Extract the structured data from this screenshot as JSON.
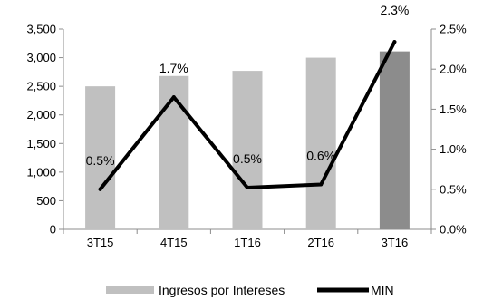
{
  "chart_data": {
    "type": "bar",
    "categories": [
      "3T15",
      "4T15",
      "1T16",
      "2T16",
      "3T16"
    ],
    "series": [
      {
        "name": "Ingresos por Intereses",
        "type": "bar",
        "axis": "left",
        "values": [
          2500,
          2680,
          2770,
          3000,
          3110
        ],
        "colors": [
          "#c0c0c0",
          "#c0c0c0",
          "#c0c0c0",
          "#c0c0c0",
          "#8c8c8c"
        ]
      },
      {
        "name": "MIN",
        "type": "line",
        "axis": "right",
        "values": [
          0.5,
          1.65,
          0.52,
          0.56,
          2.34
        ],
        "labels": [
          "0.5%",
          "1.7%",
          "0.5%",
          "0.6%",
          "2.3%"
        ],
        "color": "#000000"
      }
    ],
    "y_left": {
      "ylim": [
        0,
        3500
      ],
      "ticks": [
        0,
        500,
        1000,
        1500,
        2000,
        2500,
        3000,
        3500
      ],
      "tick_labels": [
        "0",
        "500",
        "1,000",
        "1,500",
        "2,000",
        "2,500",
        "3,000",
        "3,500"
      ]
    },
    "y_right": {
      "ylim": [
        0,
        2.5
      ],
      "ticks": [
        0,
        0.5,
        1.0,
        1.5,
        2.0,
        2.5
      ],
      "tick_labels": [
        "0.0%",
        "0.5%",
        "1.0%",
        "1.5%",
        "2.0%",
        "2.5%"
      ]
    },
    "grid": false,
    "legend": "bottom",
    "title": "",
    "xlabel": "",
    "ylabel": ""
  }
}
